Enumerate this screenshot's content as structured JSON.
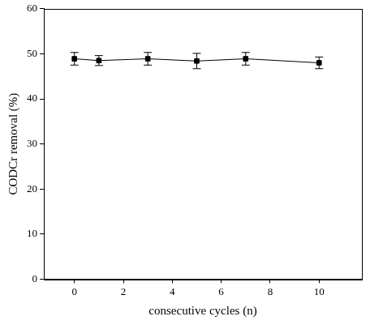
{
  "chart_data": {
    "type": "line",
    "x_label": "consecutive cycles (n)",
    "y_label": "CODCr removal (%)",
    "x": [
      0,
      1,
      3,
      5,
      7,
      10
    ],
    "values": [
      48.9,
      48.5,
      48.9,
      48.4,
      48.9,
      48.0
    ],
    "errors": [
      1.4,
      1.1,
      1.4,
      1.7,
      1.4,
      1.3
    ],
    "color": "#000000",
    "marker": "square",
    "line_style": "solid",
    "xlim": [
      -1.25,
      11.75
    ],
    "xticks": [
      0,
      2,
      4,
      6,
      8,
      10
    ],
    "ylim": [
      0,
      60
    ],
    "yticks": [
      0,
      10,
      20,
      30,
      40,
      50,
      60
    ],
    "grid": false
  }
}
